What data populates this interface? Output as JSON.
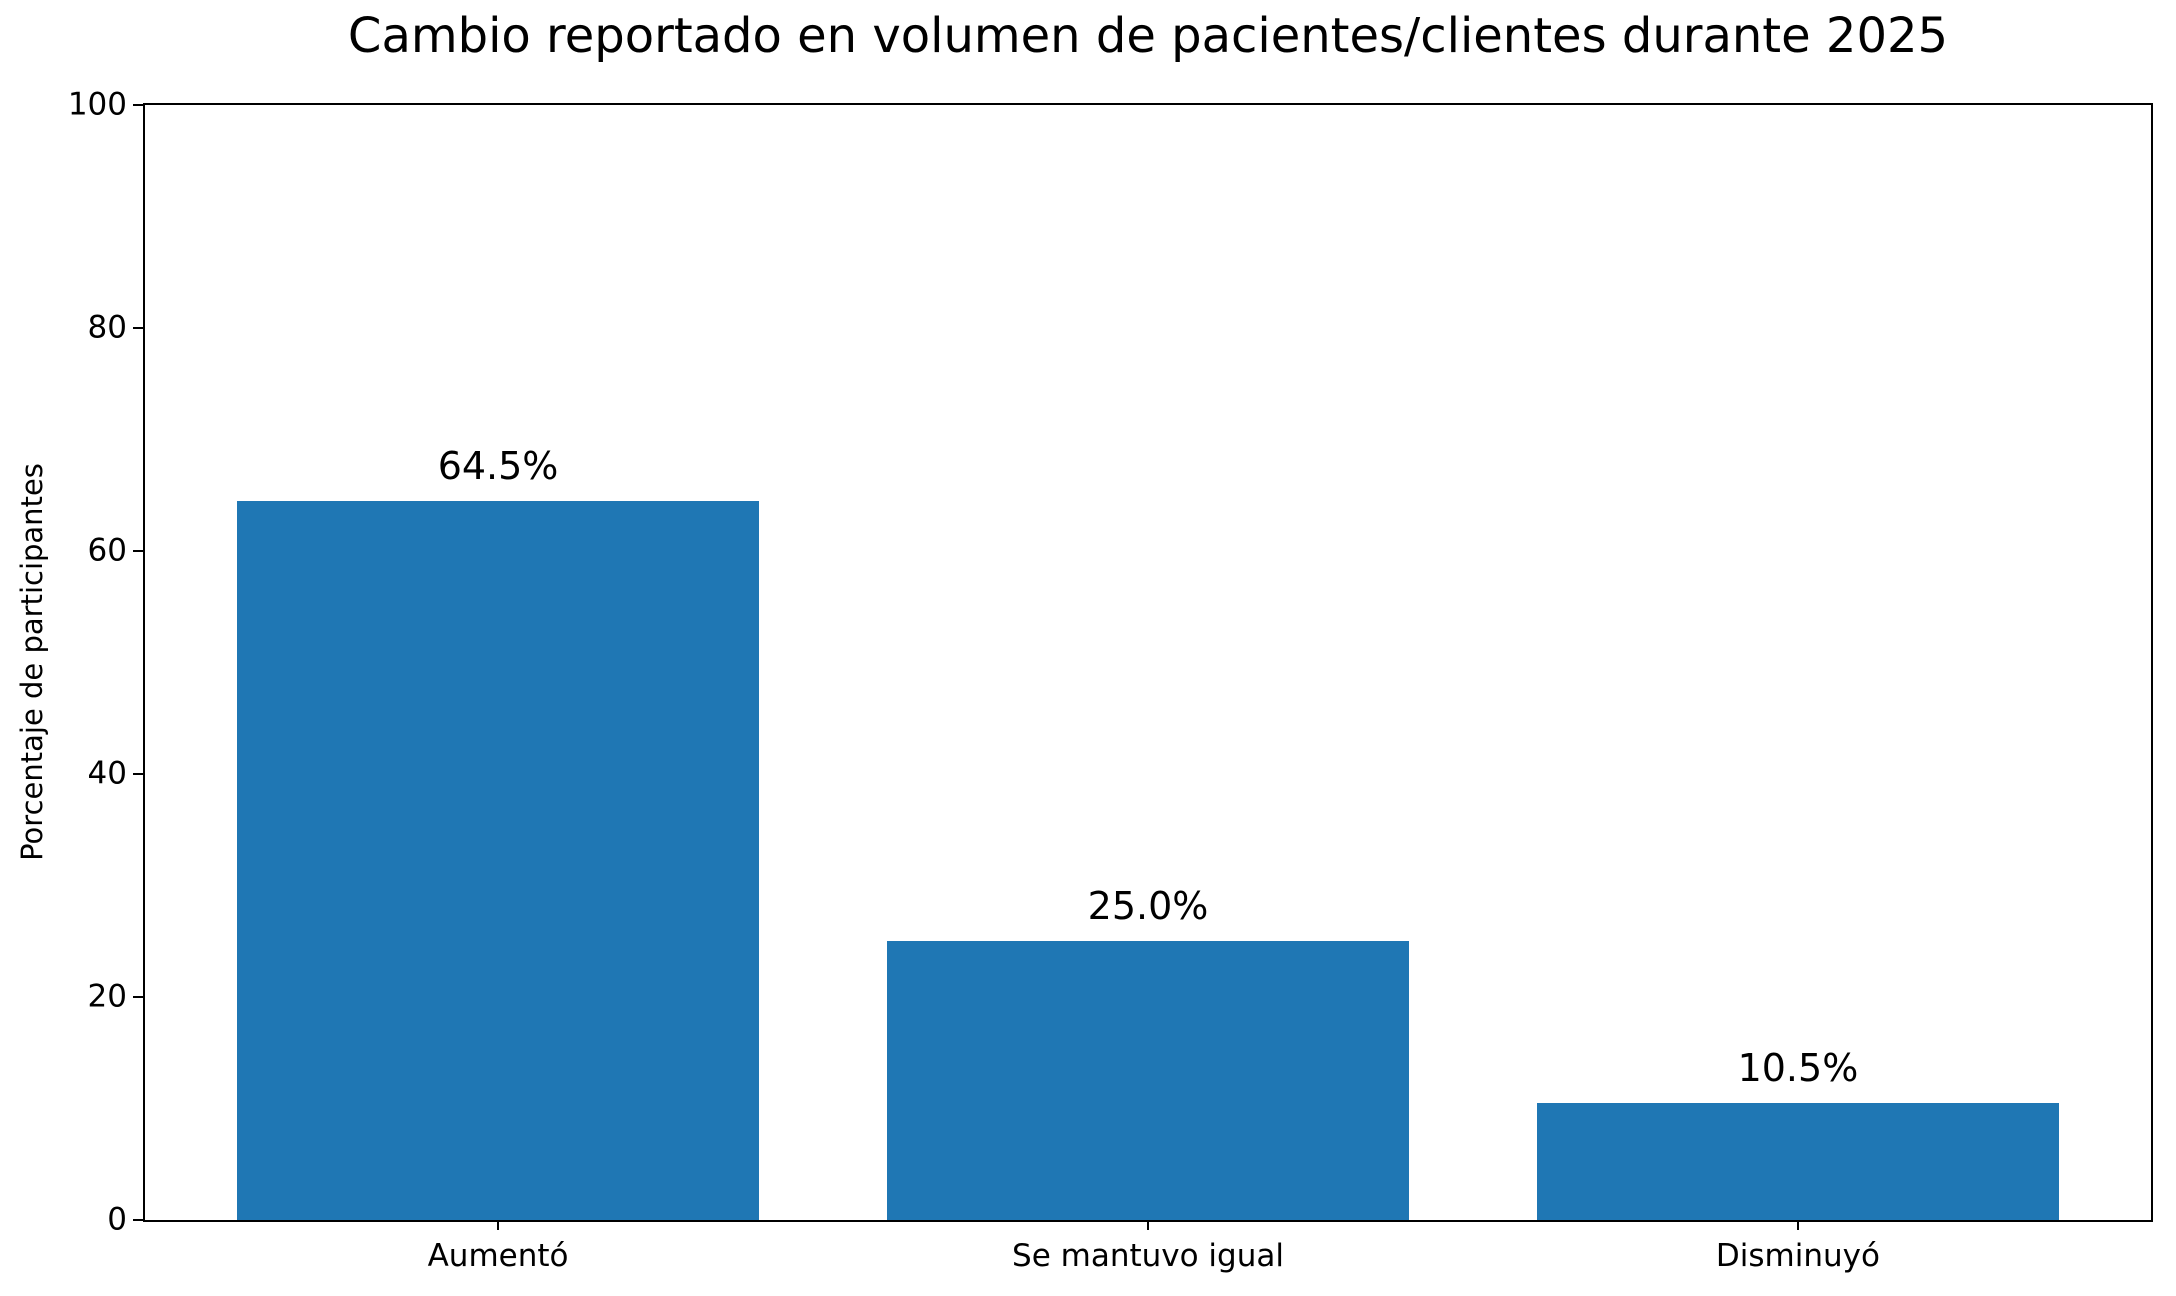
{
  "chart_data": {
    "type": "bar",
    "title": "Cambio reportado en volumen de pacientes/clientes durante 2025",
    "xlabel": "",
    "ylabel": "Porcentaje de participantes",
    "categories": [
      "Aumentó",
      "Se mantuvo igual",
      "Disminuyó"
    ],
    "values": [
      64.5,
      25.0,
      10.5
    ],
    "value_labels": [
      "64.5%",
      "25.0%",
      "10.5%"
    ],
    "ylim": [
      0,
      100
    ],
    "yticks": [
      "0",
      "20",
      "40",
      "60",
      "80",
      "100"
    ],
    "bar_color": "#1f77b4",
    "grid": false,
    "legend": "none",
    "spines": "full-box"
  }
}
